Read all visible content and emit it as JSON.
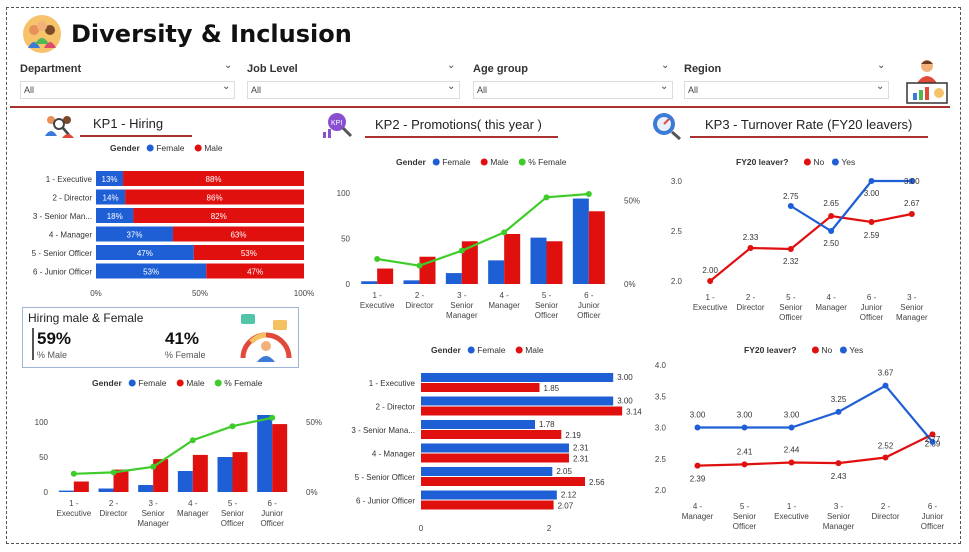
{
  "header": {
    "title": "Diversity & Inclusion"
  },
  "filters": [
    {
      "label": "Department",
      "value": "All"
    },
    {
      "label": "Job Level",
      "value": "All"
    },
    {
      "label": "Age group",
      "value": "All"
    },
    {
      "label": "Region",
      "value": "All"
    }
  ],
  "sections": {
    "kp1": "KP1 - Hiring",
    "kp2": "KP2 - Promotions( this  year )",
    "kp3": "KP3 - Turnover Rate (FY20 leavers)"
  },
  "card": {
    "title": "Hiring male & Female",
    "male_value": "59%",
    "male_label": "% Male",
    "female_value": "41%",
    "female_label": "% Female"
  },
  "colors": {
    "female": "#1f5fd6",
    "male": "#e0100f",
    "pct": "#3fcc2a",
    "accent": "#a83232"
  },
  "chart_data": [
    {
      "id": "kp1-hiring-share",
      "type": "bar",
      "orientation": "horizontal-stacked-100",
      "legend_title": "Gender",
      "categories": [
        "1 - Executive",
        "2 - Director",
        "3 - Senior Man...",
        "4 - Manager",
        "5 - Senior Officer",
        "6 - Junior Officer"
      ],
      "series": [
        {
          "name": "Female",
          "values": [
            13,
            14,
            18,
            37,
            47,
            53
          ],
          "labels": [
            "13%",
            "14%",
            "18%",
            "37%",
            "47%",
            "53%"
          ]
        },
        {
          "name": "Male",
          "values": [
            88,
            86,
            82,
            63,
            53,
            47
          ],
          "labels": [
            "88%",
            "86%",
            "82%",
            "63%",
            "53%",
            "47%"
          ]
        }
      ],
      "xticks": [
        "0%",
        "50%",
        "100%"
      ]
    },
    {
      "id": "kp1-hiring-counts",
      "type": "bar",
      "legend_title": "Gender",
      "categories": [
        "1 - Executive",
        "2 - Director",
        "3 - Senior Manager",
        "4 - Manager",
        "5 - Senior Officer",
        "6 - Junior Officer"
      ],
      "series": [
        {
          "name": "Female",
          "values": [
            2,
            5,
            10,
            30,
            50,
            110
          ]
        },
        {
          "name": "Male",
          "values": [
            15,
            32,
            47,
            53,
            57,
            97
          ]
        },
        {
          "name": "% Female",
          "type": "line",
          "values": [
            13,
            14,
            18,
            37,
            47,
            53
          ]
        }
      ],
      "ylim": [
        0,
        120
      ],
      "yticks": [
        "0",
        "50",
        "100"
      ],
      "y2lim": [
        0,
        60
      ],
      "y2ticks": [
        "0%",
        "50%"
      ]
    },
    {
      "id": "kp2-promotions-counts",
      "type": "bar",
      "legend_title": "Gender",
      "categories": [
        "1 - Executive",
        "2 - Director",
        "3 - Senior Manager",
        "4 - Manager",
        "5 - Senior Officer",
        "6 - Junior Officer"
      ],
      "series": [
        {
          "name": "Female",
          "values": [
            3,
            4,
            12,
            26,
            51,
            94
          ]
        },
        {
          "name": "Male",
          "values": [
            17,
            30,
            47,
            55,
            47,
            80
          ]
        },
        {
          "name": "% Female",
          "type": "line",
          "values": [
            15,
            11,
            20,
            31,
            52,
            54
          ]
        }
      ],
      "ylim": [
        0,
        110
      ],
      "yticks": [
        "0",
        "50",
        "100"
      ],
      "y2lim": [
        0,
        60
      ],
      "y2ticks": [
        "0%",
        "50%"
      ]
    },
    {
      "id": "kp2-promotions-avg",
      "type": "bar",
      "orientation": "horizontal",
      "legend_title": "Gender",
      "categories": [
        "1 - Executive",
        "2 - Director",
        "3 - Senior Mana...",
        "4 - Manager",
        "5 - Senior Officer",
        "6 - Junior Officer"
      ],
      "series": [
        {
          "name": "Female",
          "values": [
            3.0,
            3.0,
            1.78,
            2.31,
            2.05,
            2.12
          ],
          "labels": [
            "3.00",
            "3.00",
            "1.78",
            "2.31",
            "2.05",
            "2.12"
          ]
        },
        {
          "name": "Male",
          "values": [
            1.85,
            3.14,
            2.19,
            2.31,
            2.56,
            2.07
          ],
          "labels": [
            "1.85",
            "3.14",
            "2.19",
            "2.31",
            "2.56",
            "2.07"
          ]
        }
      ],
      "xlim": [
        0,
        3.2
      ],
      "xticks": [
        "0",
        "2"
      ]
    },
    {
      "id": "kp3-turnover-1",
      "type": "line",
      "legend_title": "FY20 leaver?",
      "categories": [
        "1 - Executive",
        "2 - Director",
        "5 - Senior Officer",
        "4 - Manager",
        "6 - Junior Officer",
        "3 - Senior Manager"
      ],
      "series": [
        {
          "name": "No",
          "values": [
            2.0,
            2.33,
            2.32,
            2.65,
            2.59,
            2.67
          ],
          "labels": [
            "2.00",
            "2.33",
            "2.32",
            "2.65",
            "2.59",
            "2.67"
          ]
        },
        {
          "name": "Yes",
          "values": [
            null,
            null,
            2.75,
            2.5,
            3.0,
            3.0
          ],
          "labels": [
            "",
            "",
            "2.75",
            "2.50",
            "3.00",
            "3.00"
          ]
        }
      ],
      "ylim": [
        2.0,
        3.0
      ],
      "yticks": [
        "2.0",
        "2.5",
        "3.0"
      ]
    },
    {
      "id": "kp3-turnover-2",
      "type": "line",
      "legend_title": "FY20 leaver?",
      "categories": [
        "4 - Manager",
        "5 - Senior Officer",
        "1 - Executive",
        "3 - Senior Manager",
        "2 - Director",
        "6 - Junior Officer"
      ],
      "series": [
        {
          "name": "No",
          "values": [
            2.39,
            2.41,
            2.44,
            2.43,
            2.52,
            2.89
          ],
          "labels": [
            "2.39",
            "2.41",
            "2.44",
            "2.43",
            "2.52",
            "2.89"
          ]
        },
        {
          "name": "Yes",
          "values": [
            3.0,
            3.0,
            3.0,
            3.25,
            3.67,
            2.77
          ],
          "labels": [
            "3.00",
            "3.00",
            "3.00",
            "3.25",
            "3.67",
            "2.77"
          ]
        }
      ],
      "ylim": [
        2.0,
        4.0
      ],
      "yticks": [
        "2.0",
        "2.5",
        "3.0",
        "3.5",
        "4.0"
      ]
    }
  ]
}
